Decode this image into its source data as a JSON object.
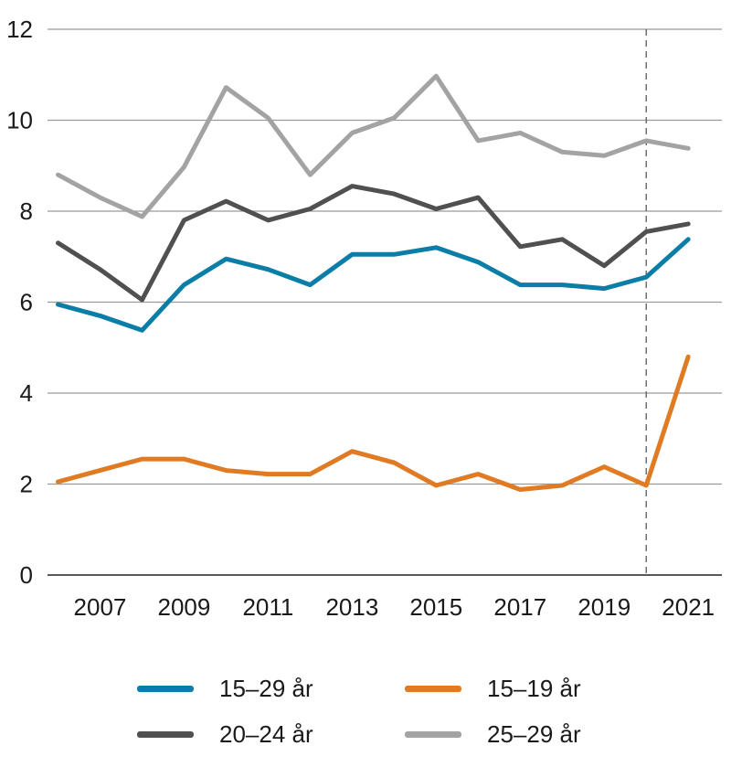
{
  "chart_data": {
    "type": "line",
    "x": [
      2006,
      2007,
      2008,
      2009,
      2010,
      2011,
      2012,
      2013,
      2014,
      2015,
      2016,
      2017,
      2018,
      2019,
      2020,
      2021
    ],
    "x_tick_labels": [
      "2007",
      "2009",
      "2011",
      "2013",
      "2015",
      "2017",
      "2019",
      "2021"
    ],
    "y_tick_labels": [
      "0",
      "2",
      "4",
      "6",
      "8",
      "10",
      "12"
    ],
    "ylim": [
      0,
      12
    ],
    "grid": "horizontal",
    "reference_line": {
      "x": 2020,
      "style": "dashed"
    },
    "legend_position": "bottom",
    "series": [
      {
        "name": "15–29 år",
        "color": "#0a7ea6",
        "values": [
          5.95,
          5.7,
          5.38,
          6.38,
          6.95,
          6.72,
          6.38,
          7.05,
          7.05,
          7.2,
          6.88,
          6.38,
          6.38,
          6.3,
          6.55,
          7.38
        ]
      },
      {
        "name": "15–19 år",
        "color": "#e07b24",
        "values": [
          2.05,
          2.3,
          2.55,
          2.55,
          2.3,
          2.22,
          2.22,
          2.72,
          2.47,
          1.97,
          2.22,
          1.88,
          1.97,
          2.38,
          1.97,
          4.8
        ]
      },
      {
        "name": "20–24 år",
        "color": "#505050",
        "values": [
          7.3,
          6.72,
          6.05,
          7.8,
          8.22,
          7.8,
          8.05,
          8.55,
          8.38,
          8.05,
          8.3,
          7.22,
          7.38,
          6.8,
          7.55,
          7.72
        ]
      },
      {
        "name": "25–29 år",
        "color": "#a3a3a3",
        "values": [
          8.8,
          8.3,
          7.88,
          8.97,
          10.72,
          10.05,
          8.8,
          9.72,
          10.05,
          10.97,
          9.55,
          9.72,
          9.3,
          9.22,
          9.55,
          9.38
        ]
      }
    ]
  },
  "legend": {
    "items": [
      {
        "label": "15–29 år",
        "color": "#0a7ea6"
      },
      {
        "label": "15–19 år",
        "color": "#e07b24"
      },
      {
        "label": "20–24 år",
        "color": "#505050"
      },
      {
        "label": "25–29 år",
        "color": "#a3a3a3"
      }
    ]
  }
}
